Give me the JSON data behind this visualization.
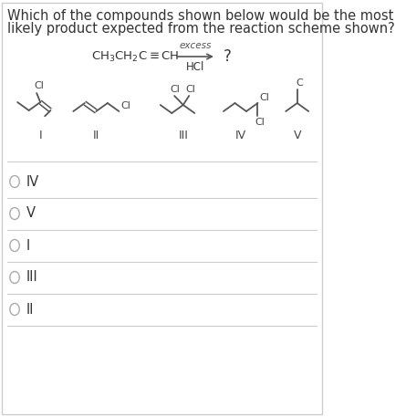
{
  "title_line1": "Which of the compounds shown below would be the most",
  "title_line2": "likely product expected from the reaction scheme shown?",
  "reagent": "CH₃CH₂C≡CH",
  "condition_top": "excess",
  "condition_bottom": "HCl",
  "product": "?",
  "compound_labels": [
    "I",
    "II",
    "III",
    "IV",
    "V"
  ],
  "options": [
    "IV",
    "V",
    "I",
    "III",
    "II"
  ],
  "bg_color": "#ffffff",
  "text_color": "#000000",
  "line_color": "#555555",
  "font_size_title": 10.5,
  "font_size_options": 10.5,
  "arrow_color": "#555555"
}
